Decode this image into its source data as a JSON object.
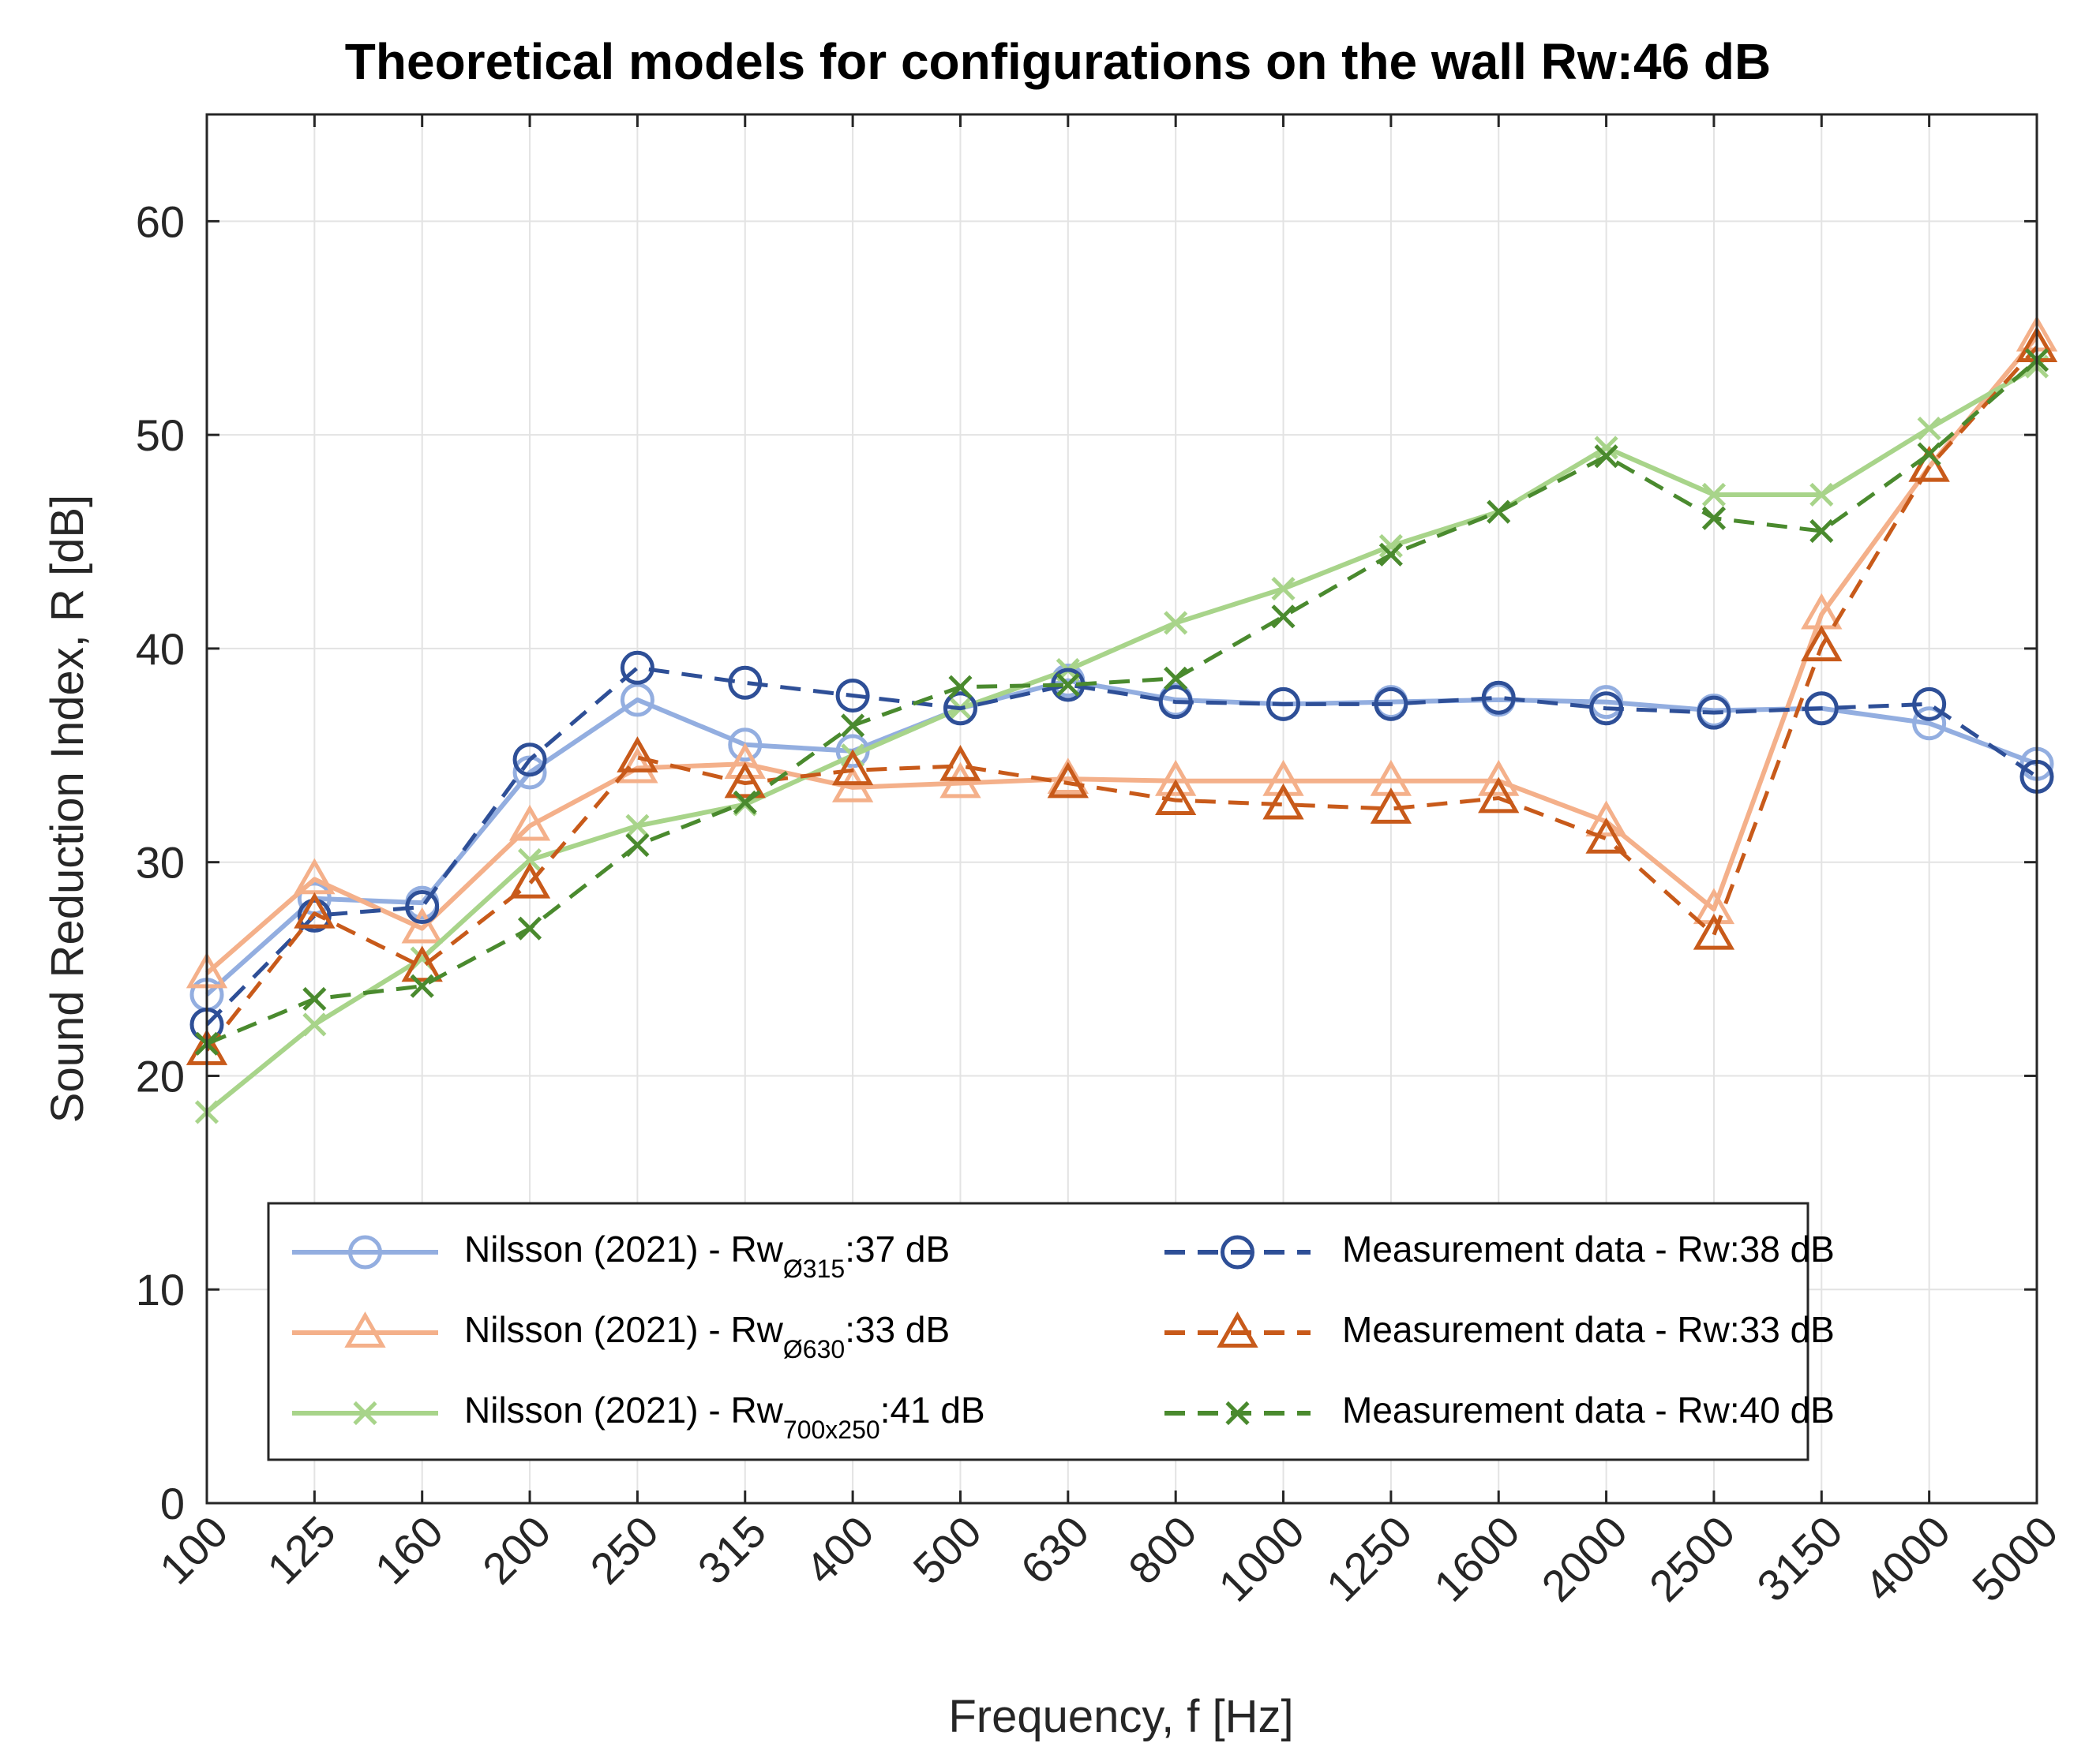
{
  "chart_data": {
    "type": "line",
    "title": "Theoretical models for configurations on the wall Rw:46 dB",
    "xlabel": "Frequency, f [Hz]",
    "ylabel": "Sound Reduction Index, R [dB]",
    "ylim": [
      0,
      65
    ],
    "yticks": [
      0,
      10,
      20,
      30,
      40,
      50,
      60
    ],
    "categories": [
      "100",
      "125",
      "160",
      "200",
      "250",
      "315",
      "400",
      "500",
      "630",
      "800",
      "1000",
      "1250",
      "1600",
      "2000",
      "2500",
      "3150",
      "4000",
      "5000"
    ],
    "grid": true,
    "legend_position": "bottom",
    "series": [
      {
        "key": "nilsson_315",
        "legend_main": "Nilsson (2021) - Rw",
        "legend_sub": "Ø315",
        "legend_suffix": ":37 dB",
        "color": "#93aee0",
        "style": "solid",
        "marker": "circle",
        "values": [
          23.8,
          28.3,
          28.1,
          34.2,
          37.6,
          35.5,
          35.2,
          37.2,
          38.5,
          37.6,
          37.4,
          37.5,
          37.6,
          37.5,
          37.1,
          37.2,
          36.5,
          34.6
        ]
      },
      {
        "key": "nilsson_630",
        "legend_main": "Nilsson (2021) - Rw",
        "legend_sub": "Ø630",
        "legend_suffix": ":33 dB",
        "color": "#f4b08a",
        "style": "solid",
        "marker": "triangle",
        "values": [
          24.8,
          29.2,
          26.9,
          31.7,
          34.4,
          34.6,
          33.5,
          33.7,
          33.9,
          33.8,
          33.8,
          33.8,
          33.8,
          31.9,
          27.8,
          41.6,
          48.5,
          54.6
        ]
      },
      {
        "key": "nilsson_700x250",
        "legend_main": "Nilsson (2021) - Rw",
        "legend_sub": "700x250",
        "legend_suffix": ":41 dB",
        "color": "#a8d48a",
        "style": "solid",
        "marker": "x",
        "values": [
          18.3,
          22.4,
          25.5,
          30.1,
          31.7,
          32.7,
          35.0,
          37.2,
          39.0,
          41.2,
          42.8,
          44.8,
          46.4,
          49.4,
          47.2,
          47.2,
          50.3,
          53.2
        ]
      },
      {
        "key": "measurement_315",
        "name": "Measurement data - Rw:38 dB",
        "color": "#2e4f97",
        "style": "dashed",
        "marker": "circle",
        "values": [
          22.4,
          27.5,
          27.9,
          34.8,
          39.1,
          38.4,
          37.8,
          37.2,
          38.3,
          37.5,
          37.4,
          37.4,
          37.7,
          37.2,
          37.0,
          37.2,
          37.4,
          34.0
        ]
      },
      {
        "key": "measurement_630",
        "name": "Measurement data - Rw:33 dB",
        "color": "#c85a1a",
        "style": "dashed",
        "marker": "triangle",
        "values": [
          21.2,
          27.6,
          25.1,
          29.0,
          34.9,
          33.7,
          34.3,
          34.5,
          33.7,
          32.9,
          32.7,
          32.5,
          33.0,
          31.1,
          26.6,
          40.1,
          48.5,
          54.1
        ]
      },
      {
        "key": "measurement_700x250",
        "name": "Measurement data - Rw:40 dB",
        "color": "#4a8a2e",
        "style": "dashed",
        "marker": "x",
        "values": [
          21.5,
          23.6,
          24.2,
          26.9,
          30.8,
          32.8,
          36.4,
          38.2,
          38.3,
          38.6,
          41.5,
          44.4,
          46.4,
          49.0,
          46.1,
          45.5,
          49.1,
          53.5
        ]
      }
    ]
  }
}
